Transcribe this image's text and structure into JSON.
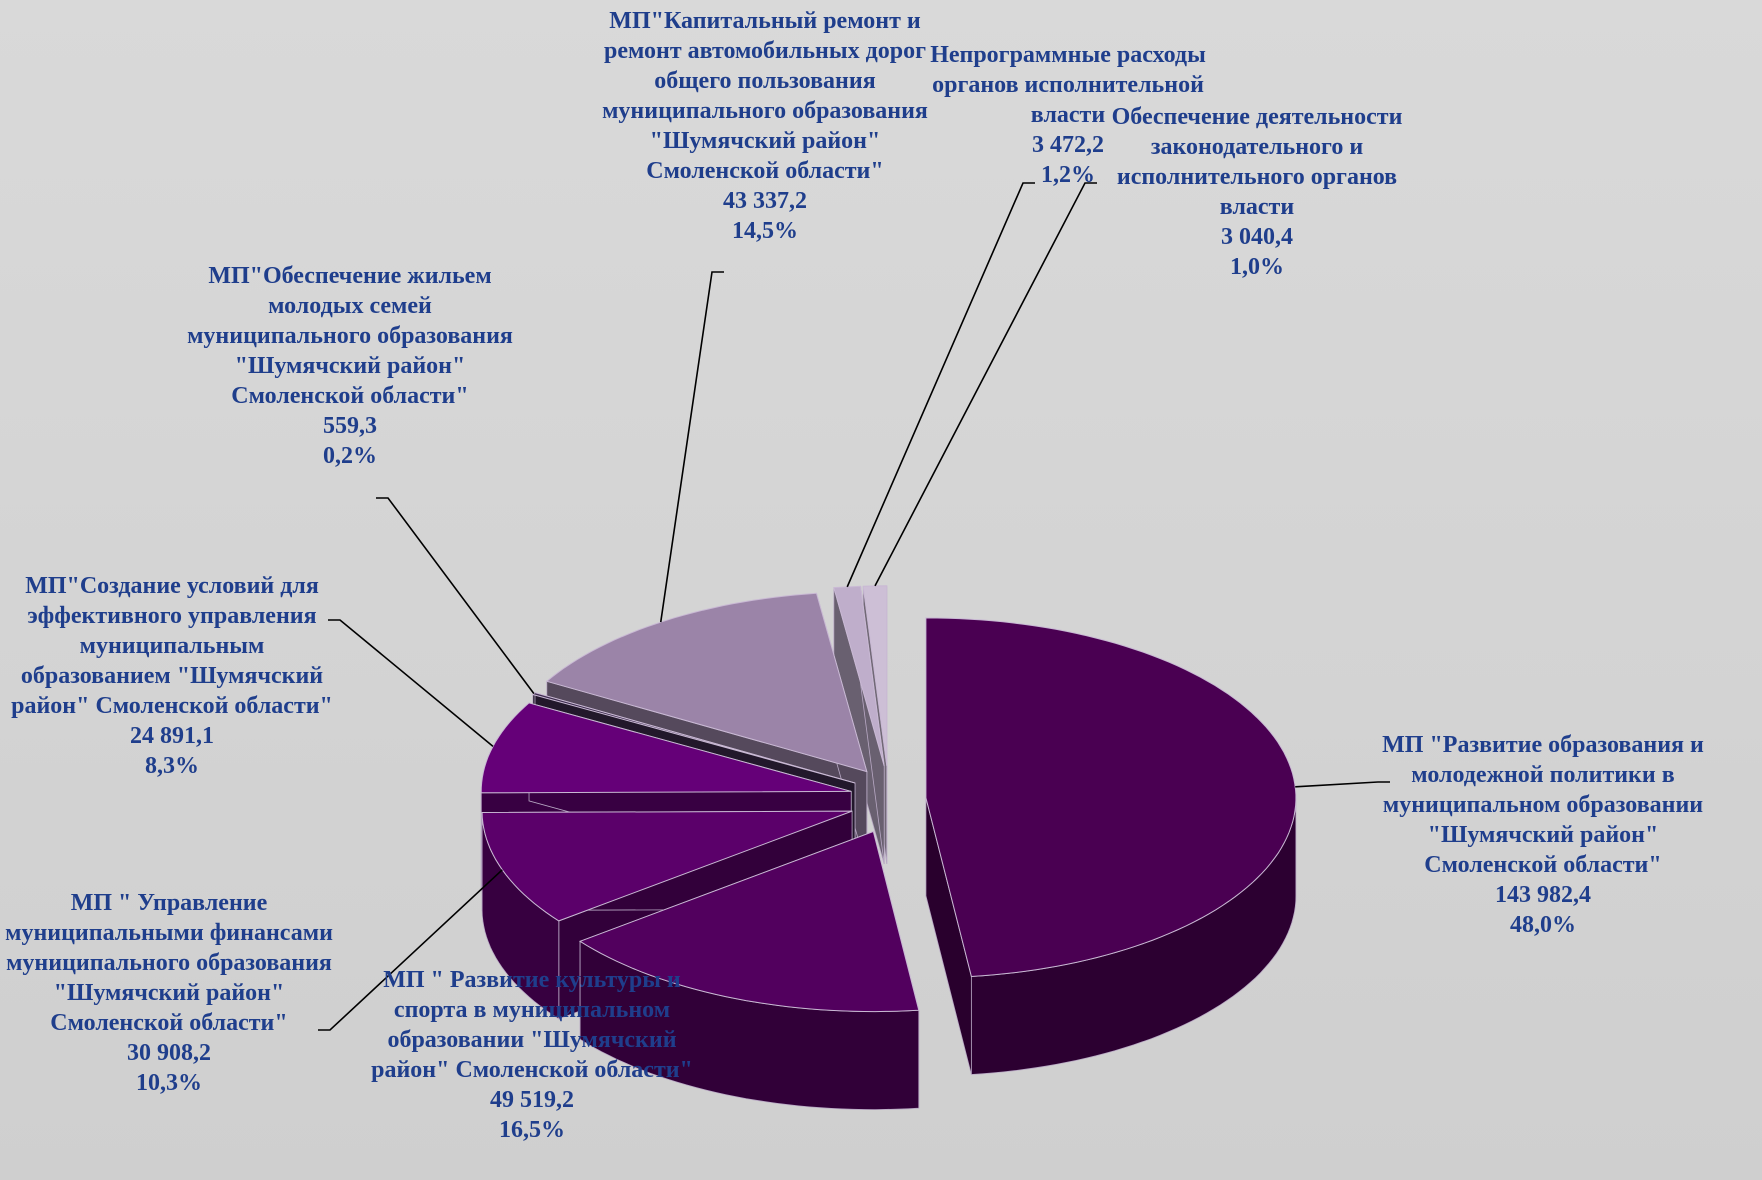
{
  "chart_data": {
    "type": "pie3d",
    "categories": [
      "МП \"Развитие образования и молодежной политики в муниципальном образовании \"Шумячский район\" Смоленской области\"",
      "МП \" Развитие культуры и спорта в муниципальном образовании \"Шумячский район\" Смоленской области\"",
      "МП \" Управление муниципальными финансами муниципального образования \"Шумячский район\" Смоленской области\"",
      "МП\"Создание условий для эффективного управления муниципальным образованием \"Шумячский район\" Смоленской области\"",
      "МП\"Обеспечение жильем молодых семей муниципального образования \"Шумячский район\" Смоленской области\"",
      "МП\"Капитальный ремонт и ремонт автомобильных дорог общего пользования муниципального образования \"Шумячский район\" Смоленской области\"",
      "Непрограммные расходы органов исполнительной власти",
      "Обеспечение деятельности законодательного и исполнительного органов власти"
    ],
    "values": [
      143982.4,
      49519.2,
      30908.2,
      24891.1,
      559.3,
      43337.2,
      3472.2,
      3040.4
    ],
    "value_labels": [
      "143 982,4",
      "49 519,2",
      "30 908,2",
      "24 891,1",
      "559,3",
      "43 337,2",
      "3 472,2",
      "3 040,4"
    ],
    "percents": [
      48.0,
      16.5,
      10.3,
      8.3,
      0.2,
      14.5,
      1.2,
      1.0
    ],
    "percent_labels": [
      "48,0%",
      "16,5%",
      "10,3%",
      "8,3%",
      "0,2%",
      "14,5%",
      "1,2%",
      "1,0%"
    ],
    "colors": [
      "#4a0052",
      "#52005e",
      "#5b006a",
      "#650078",
      "#3d2c4e",
      "#9b84a8",
      "#bfaecb",
      "#cdbfd6"
    ]
  }
}
